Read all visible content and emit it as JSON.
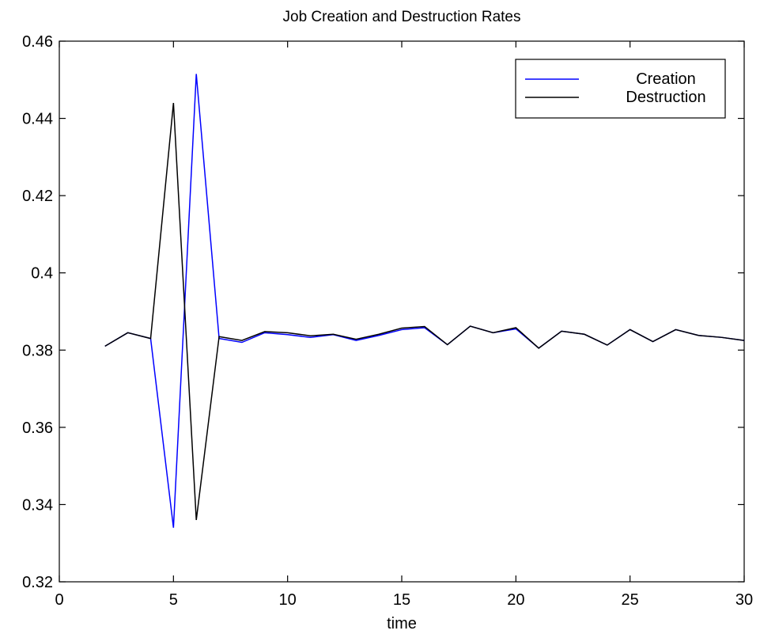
{
  "chart_data": {
    "type": "line",
    "title": "Job Creation and Destruction Rates",
    "xlabel": "time",
    "ylabel": "",
    "xlim": [
      0,
      30
    ],
    "ylim": [
      0.32,
      0.46
    ],
    "xticks": [
      0,
      5,
      10,
      15,
      20,
      25,
      30
    ],
    "xtick_labels": [
      "0",
      "5",
      "10",
      "15",
      "20",
      "25",
      "30"
    ],
    "yticks": [
      0.32,
      0.34,
      0.36,
      0.38,
      0.4,
      0.42,
      0.44,
      0.46
    ],
    "ytick_labels": [
      "0.32",
      "0.34",
      "0.36",
      "0.38",
      "0.4",
      "0.42",
      "0.44",
      "0.46"
    ],
    "grid": false,
    "legend_position": "top-right",
    "x": [
      2,
      3,
      4,
      5,
      6,
      7,
      8,
      9,
      10,
      11,
      12,
      13,
      14,
      15,
      16,
      17,
      18,
      19,
      20,
      21,
      22,
      23,
      24,
      25,
      26,
      27,
      28,
      29,
      30
    ],
    "series": [
      {
        "name": "Creation",
        "color": "#0000ff",
        "values": [
          0.381,
          0.3845,
          0.383,
          0.334,
          0.4515,
          0.383,
          0.382,
          0.3845,
          0.384,
          0.3833,
          0.384,
          0.3825,
          0.3838,
          0.3853,
          0.3858,
          0.3814,
          0.3862,
          0.3845,
          0.3855,
          0.3805,
          0.3849,
          0.3841,
          0.3813,
          0.3853,
          0.3822,
          0.3853,
          0.3838,
          0.3833,
          0.3825
        ]
      },
      {
        "name": "Destruction",
        "color": "#000000",
        "values": [
          0.381,
          0.3845,
          0.383,
          0.444,
          0.336,
          0.3835,
          0.3825,
          0.3848,
          0.3845,
          0.3837,
          0.3841,
          0.3828,
          0.3841,
          0.3857,
          0.3861,
          0.3814,
          0.3862,
          0.3845,
          0.3858,
          0.3805,
          0.3849,
          0.3841,
          0.3813,
          0.3853,
          0.3822,
          0.3853,
          0.3838,
          0.3833,
          0.3825
        ]
      }
    ]
  }
}
